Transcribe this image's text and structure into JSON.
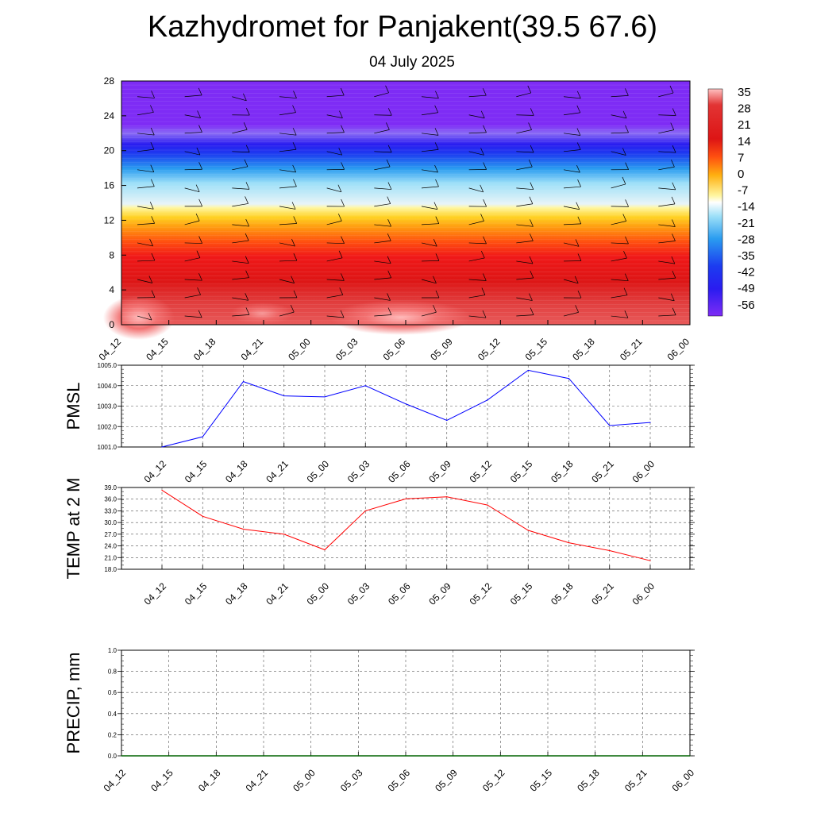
{
  "title": "Kazhydromet for Panjakent(39.5 67.6)",
  "subtitle": "04 July 2025",
  "time_labels": [
    "04_12",
    "04_15",
    "04_18",
    "04_21",
    "05_00",
    "05_03",
    "05_06",
    "05_09",
    "05_12",
    "05_15",
    "05_18",
    "05_21",
    "06_00"
  ],
  "chart_data": [
    {
      "type": "heatmap",
      "title": "",
      "xlabel": "",
      "ylabel": "",
      "x": [
        "04_12",
        "04_15",
        "04_18",
        "04_21",
        "05_00",
        "05_03",
        "05_06",
        "05_09",
        "05_12",
        "05_15",
        "05_18",
        "05_21",
        "06_00"
      ],
      "yticks": [
        0,
        4,
        8,
        12,
        16,
        20,
        24,
        28
      ],
      "ylim": [
        0,
        28
      ],
      "colorbar": {
        "labels": [
          "35",
          "28",
          "21",
          "14",
          "7",
          "0",
          "-7",
          "-14",
          "-21",
          "-28",
          "-35",
          "-42",
          "-49",
          "-56"
        ],
        "range": [
          -60,
          38
        ],
        "placement": "right"
      },
      "wind_barbs": true
    },
    {
      "type": "line",
      "ylabel": "PMSL",
      "x": [
        "04_12",
        "04_15",
        "04_18",
        "04_21",
        "05_00",
        "05_03",
        "05_06",
        "05_09",
        "05_12",
        "05_15",
        "05_18",
        "05_21",
        "06_00"
      ],
      "values": [
        1001.0,
        1001.5,
        1004.2,
        1003.5,
        1003.45,
        1004.0,
        1003.1,
        1002.3,
        1003.3,
        1004.75,
        1004.35,
        1002.05,
        1002.2
      ],
      "ylim": [
        1001.0,
        1005.0
      ],
      "yticks": [
        "1001.0",
        "1002.0",
        "1003.0",
        "1004.0",
        "1005.0"
      ],
      "color": "#0000ff",
      "grid": true
    },
    {
      "type": "line",
      "ylabel": "TEMP at 2 M",
      "x": [
        "04_12",
        "04_15",
        "04_18",
        "04_21",
        "05_00",
        "05_03",
        "05_06",
        "05_09",
        "05_12",
        "05_15",
        "05_18",
        "05_21",
        "06_00"
      ],
      "values": [
        38.3,
        31.6,
        28.3,
        27.0,
        23.0,
        33.0,
        36.1,
        36.6,
        34.5,
        28.0,
        24.8,
        22.8,
        20.2
      ],
      "ylim": [
        18.0,
        39.0
      ],
      "yticks": [
        "18.0",
        "21.0",
        "24.0",
        "27.0",
        "30.0",
        "33.0",
        "36.0",
        "39.0"
      ],
      "color": "#ff0000",
      "grid": true
    },
    {
      "type": "line",
      "ylabel": "PRECIP, mm",
      "x": [
        "04_12",
        "04_15",
        "04_18",
        "04_21",
        "05_00",
        "05_03",
        "05_06",
        "05_09",
        "05_12",
        "05_15",
        "05_18",
        "05_21",
        "06_00"
      ],
      "values": [
        0,
        0,
        0,
        0,
        0,
        0,
        0,
        0,
        0,
        0,
        0,
        0,
        0
      ],
      "ylim": [
        0.0,
        1.0
      ],
      "yticks": [
        "0.0",
        "0.2",
        "0.4",
        "0.6",
        "0.8",
        "1.0"
      ],
      "color": "#006400",
      "grid": true
    }
  ]
}
